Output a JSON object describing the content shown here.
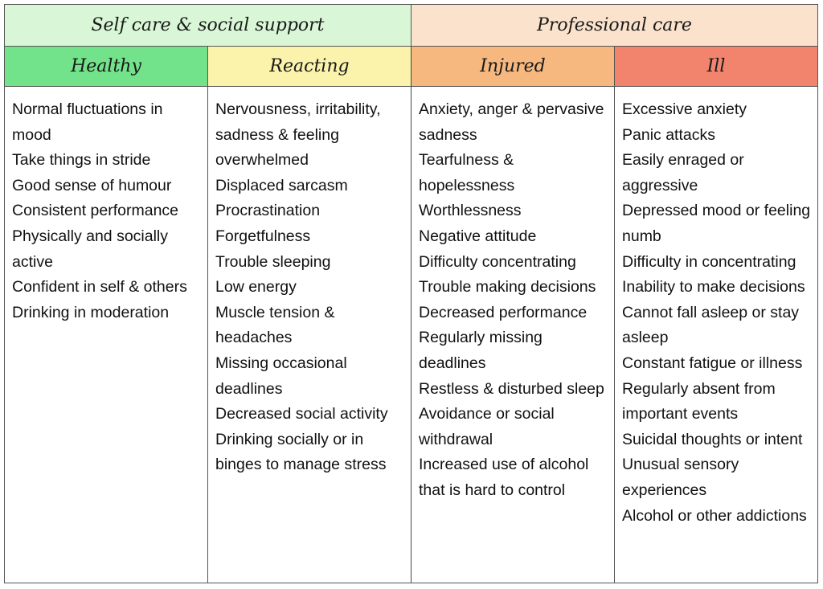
{
  "groups": {
    "self_care": "Self care & social support",
    "professional": "Professional care"
  },
  "stages": {
    "healthy": "Healthy",
    "reacting": "Reacting",
    "injured": "Injured",
    "ill": "Ill"
  },
  "columns": {
    "healthy": [
      "Normal fluctuations in mood",
      "Take things in stride",
      "Good sense of humour",
      "Consistent performance",
      "Physically and socially active",
      "Confident in self & others",
      "Drinking in moderation"
    ],
    "reacting": [
      "Nervousness, irritability, sadness & feeling overwhelmed",
      "Displaced sarcasm",
      "Procrastination",
      "Forgetfulness",
      "Trouble sleeping",
      "Low energy",
      "Muscle tension & headaches",
      "Missing occasional deadlines",
      "Decreased social activity",
      "Drinking socially or in binges to manage stress"
    ],
    "injured": [
      "Anxiety, anger & pervasive sadness",
      "Tearfulness & hopelessness",
      "Worthlessness",
      "Negative attitude",
      "Difficulty concentrating",
      "Trouble making decisions",
      "Decreased performance",
      "Regularly missing deadlines",
      "Restless & disturbed sleep",
      "Avoidance or social withdrawal",
      "Increased use of alcohol that is hard to control"
    ],
    "ill": [
      "Excessive anxiety",
      "Panic attacks",
      "Easily enraged or aggressive",
      "Depressed mood or feeling numb",
      "Difficulty in concentrating",
      "Inability to make decisions",
      "Cannot fall asleep or stay asleep",
      "Constant fatigue or illness",
      "Regularly absent from important events",
      "Suicidal thoughts or intent",
      "Unusual sensory experiences",
      "Alcohol or other addictions"
    ]
  },
  "colors": {
    "self_care": "#d9f7d6",
    "professional": "#fae2cc",
    "healthy": "#72e38a",
    "reacting": "#fbf3ab",
    "injured": "#f6b87f",
    "ill": "#f2846e"
  }
}
